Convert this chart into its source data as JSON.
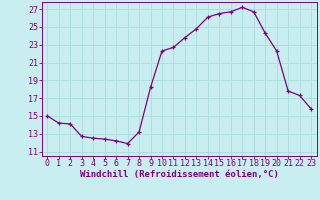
{
  "x": [
    0,
    1,
    2,
    3,
    4,
    5,
    6,
    7,
    8,
    9,
    10,
    11,
    12,
    13,
    14,
    15,
    16,
    17,
    18,
    19,
    20,
    21,
    22,
    23
  ],
  "y": [
    15.0,
    14.2,
    14.1,
    12.7,
    12.5,
    12.4,
    12.2,
    11.9,
    13.2,
    18.2,
    22.3,
    22.7,
    23.8,
    24.8,
    26.1,
    26.5,
    26.7,
    27.2,
    26.7,
    24.3,
    22.3,
    17.8,
    17.3,
    15.8
  ],
  "line_color": "#800080",
  "marker": "+",
  "marker_size": 3,
  "xlabel": "Windchill (Refroidissement éolien,°C)",
  "ylabel_ticks": [
    11,
    13,
    15,
    17,
    19,
    21,
    23,
    25,
    27
  ],
  "xlim": [
    -0.5,
    23.5
  ],
  "ylim": [
    10.5,
    27.8
  ],
  "background_color": "#c8eef0",
  "grid_color": "#aadddd",
  "line_color_spine": "#800080",
  "tick_color": "#800080",
  "label_color": "#800080",
  "font_size": 6.0,
  "xlabel_font_size": 6.5,
  "linewidth": 0.9
}
